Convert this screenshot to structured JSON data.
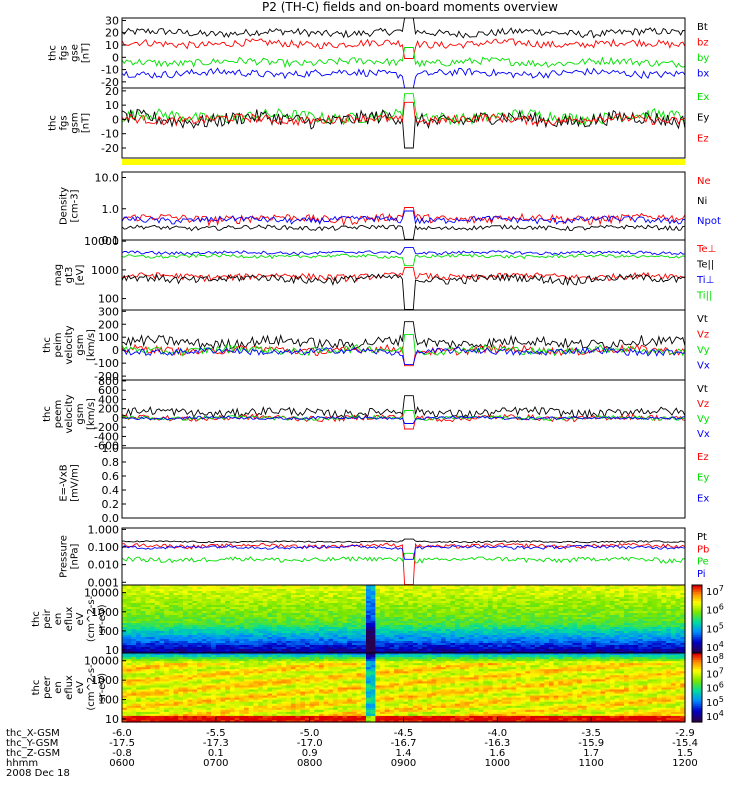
{
  "title": "P2 (TH-C) fields and on-board moments overview",
  "colors": {
    "black": "#000000",
    "red": "#ff0000",
    "green": "#00e000",
    "blue": "#0000ff",
    "yellow": "#ffff00",
    "frame": "#000000"
  },
  "chart_data": [
    {
      "type": "line",
      "ylabel": [
        "thc",
        "fgs",
        "gse",
        "[nT]"
      ],
      "yticks": [
        "30",
        "20",
        "10",
        "0",
        "-10",
        "-20"
      ],
      "ylim": [
        -25,
        32
      ],
      "series": [
        {
          "name": "Bt",
          "color": "black",
          "base": 20,
          "amp": 3
        },
        {
          "name": "bz",
          "color": "red",
          "base": 11,
          "amp": 3
        },
        {
          "name": "by",
          "color": "green",
          "base": -4,
          "amp": 3
        },
        {
          "name": "bx",
          "color": "blue",
          "base": -13,
          "amp": 3
        }
      ]
    },
    {
      "type": "line",
      "ylabel": [
        "thc",
        "fgs",
        "gsm",
        "[nT]"
      ],
      "yticks": [
        "20",
        "10",
        "0",
        "-10",
        "-20"
      ],
      "ylim": [
        -27,
        22
      ],
      "series": [
        {
          "name": "Ex",
          "color": "green",
          "base": 2,
          "amp": 4
        },
        {
          "name": "Ey",
          "color": "black",
          "base": 0,
          "amp": 5
        },
        {
          "name": "Ez",
          "color": "red",
          "base": 0,
          "amp": 3
        }
      ]
    },
    {
      "type": "line",
      "ylabel": [
        "Density",
        "[cm-3]"
      ],
      "scale": "log",
      "yticks": [
        "10.0",
        "1.0",
        "0.1"
      ],
      "ylim": [
        0.1,
        15
      ],
      "series": [
        {
          "name": "Ne",
          "color": "red",
          "base": 0.5,
          "amp": 0.15
        },
        {
          "name": "Ni",
          "color": "black",
          "base": 0.25,
          "amp": 0.04
        },
        {
          "name": "Npot",
          "color": "blue",
          "base": 0.45,
          "amp": 0.1
        }
      ]
    },
    {
      "type": "line",
      "ylabel": [
        "mag",
        "gt3",
        "[eV]"
      ],
      "scale": "log",
      "yticks": [
        "10000",
        "1000",
        "100"
      ],
      "ylim": [
        40,
        11000
      ],
      "series": [
        {
          "name": "Te⊥",
          "color": "red",
          "base": 600,
          "amp": 150
        },
        {
          "name": "Te||",
          "color": "black",
          "base": 500,
          "amp": 150
        },
        {
          "name": "Ti⊥",
          "color": "blue",
          "base": 4000,
          "amp": 500
        },
        {
          "name": "Ti||",
          "color": "green",
          "base": 3000,
          "amp": 400
        }
      ]
    },
    {
      "type": "line",
      "ylabel": [
        "thc",
        "peim",
        "velocity",
        "gsm",
        "[km/s]"
      ],
      "yticks": [
        "300",
        "200",
        "100",
        "0",
        "-100",
        "-200"
      ],
      "ylim": [
        -230,
        310
      ],
      "series": [
        {
          "name": "Vt",
          "color": "black",
          "base": 60,
          "amp": 40
        },
        {
          "name": "Vz",
          "color": "red",
          "base": 0,
          "amp": 30
        },
        {
          "name": "Vy",
          "color": "green",
          "base": 0,
          "amp": 30
        },
        {
          "name": "Vx",
          "color": "blue",
          "base": -10,
          "amp": 25
        }
      ]
    },
    {
      "type": "line",
      "ylabel": [
        "thc",
        "peem",
        "velocity",
        "gsm",
        "[km/s]"
      ],
      "yticks": [
        "800",
        "600",
        "400",
        "200",
        "0",
        "-200",
        "-400",
        "-600"
      ],
      "ylim": [
        -650,
        820
      ],
      "series": [
        {
          "name": "Vt",
          "color": "black",
          "base": 120,
          "amp": 90
        },
        {
          "name": "Vz",
          "color": "red",
          "base": 0,
          "amp": 60
        },
        {
          "name": "Vy",
          "color": "green",
          "base": 0,
          "amp": 40
        },
        {
          "name": "Vx",
          "color": "blue",
          "base": 0,
          "amp": 30
        }
      ]
    },
    {
      "type": "line",
      "ylabel": [
        "E=-VxB",
        "[mV/m]"
      ],
      "yticks": [
        "1.0",
        "0.8",
        "0.6",
        "0.4",
        "0.2",
        "0.0"
      ],
      "ylim": [
        0,
        1
      ],
      "series": [
        {
          "name": "Ez",
          "color": "red"
        },
        {
          "name": "Ey",
          "color": "green"
        },
        {
          "name": "Ex",
          "color": "blue"
        }
      ]
    },
    {
      "type": "line",
      "ylabel": [
        "Pressure",
        "[nPa]"
      ],
      "scale": "log",
      "yticks": [
        "1.000",
        "0.100",
        "0.010",
        "0.001"
      ],
      "ylim": [
        0.0007,
        1.2
      ],
      "series": [
        {
          "name": "Pt",
          "color": "black",
          "base": 0.2,
          "amp": 0.02
        },
        {
          "name": "Pb",
          "color": "red",
          "base": 0.12,
          "amp": 0.03
        },
        {
          "name": "Pe",
          "color": "green",
          "base": 0.02,
          "amp": 0.006
        },
        {
          "name": "Pi",
          "color": "blue",
          "base": 0.1,
          "amp": 0.02
        }
      ]
    },
    {
      "type": "heatmap",
      "ylabel": [
        "thc",
        "peir",
        "en",
        "eflux",
        "eV",
        "(cm^2-s-",
        "sr-eV)"
      ],
      "yticks": [
        "10000",
        "1000",
        "100",
        "10"
      ],
      "scale": "log",
      "ylim": [
        7,
        25000
      ],
      "colorbar_ticks": [
        "10^7",
        "10^6",
        "10^5",
        "10^4"
      ],
      "colorbar_exponents": [
        "7",
        "6",
        "5",
        "4"
      ]
    },
    {
      "type": "heatmap",
      "ylabel": [
        "thc",
        "peer",
        "en",
        "eflux",
        "eV",
        "(cm^2-s-",
        "sr-eV)"
      ],
      "yticks": [
        "10000",
        "1000",
        "100",
        "10"
      ],
      "scale": "log",
      "ylim": [
        7,
        25000
      ],
      "colorbar_ticks": [
        "10^8",
        "10^7",
        "10^6",
        "10^5",
        "10^4"
      ],
      "colorbar_exponents": [
        "8",
        "7",
        "6",
        "5",
        "4"
      ]
    }
  ],
  "xaxis": {
    "rows": [
      {
        "label": "thc_X-GSM",
        "values": [
          "-6.0",
          "-5.5",
          "-5.0",
          "-4.5",
          "-4.0",
          "-3.5",
          "-2.9"
        ]
      },
      {
        "label": "thc_Y-GSM",
        "values": [
          "-17.5",
          "-17.3",
          "-17.0",
          "-16.7",
          "-16.3",
          "-15.9",
          "-15.4"
        ]
      },
      {
        "label": "thc_Z-GSM",
        "values": [
          "-0.8",
          "0.1",
          "0.9",
          "1.4",
          "1.6",
          "1.7",
          "1.5"
        ]
      },
      {
        "label": "hhmm",
        "values": [
          "0600",
          "0700",
          "0800",
          "0900",
          "1000",
          "1100",
          "1200"
        ]
      }
    ],
    "date": "2008 Dec 18"
  }
}
